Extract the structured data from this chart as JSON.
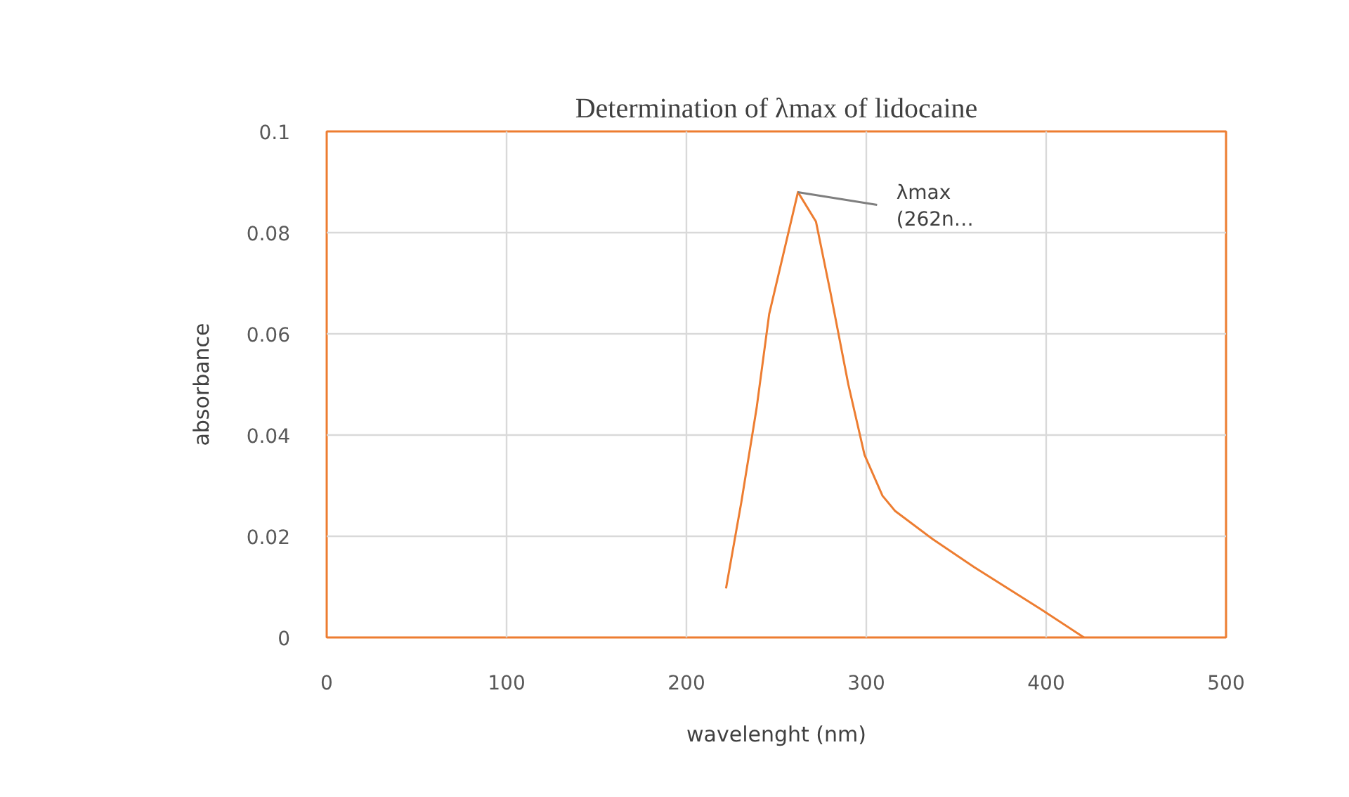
{
  "chart_data": {
    "type": "line",
    "title": "Determination of λmax of lidocaine",
    "xlabel": "wavelenght (nm)",
    "ylabel": "absorbance",
    "x": [
      222,
      230.5,
      239,
      246,
      262,
      272,
      280,
      290,
      299,
      309,
      316,
      337,
      360,
      397,
      421
    ],
    "series": [
      {
        "color": "#ed7d31",
        "values": [
          0.0097,
          0.0267,
          0.0453,
          0.0639,
          0.088,
          0.0822,
          0.0683,
          0.05,
          0.0361,
          0.028,
          0.025,
          0.0194,
          0.0139,
          0.0056,
          0
        ]
      }
    ],
    "xlim": [
      0,
      500
    ],
    "xticks": [
      0,
      100,
      200,
      300,
      400,
      500
    ],
    "ylim": [
      0,
      0.1
    ],
    "yticks": [
      0,
      0.02,
      0.04,
      0.06,
      0.08,
      0.1
    ],
    "grid": true,
    "marker": "none",
    "line_style": "solid",
    "annotations": [
      {
        "text": "λmax (262n…",
        "x": 262,
        "y": 0.088
      }
    ]
  }
}
